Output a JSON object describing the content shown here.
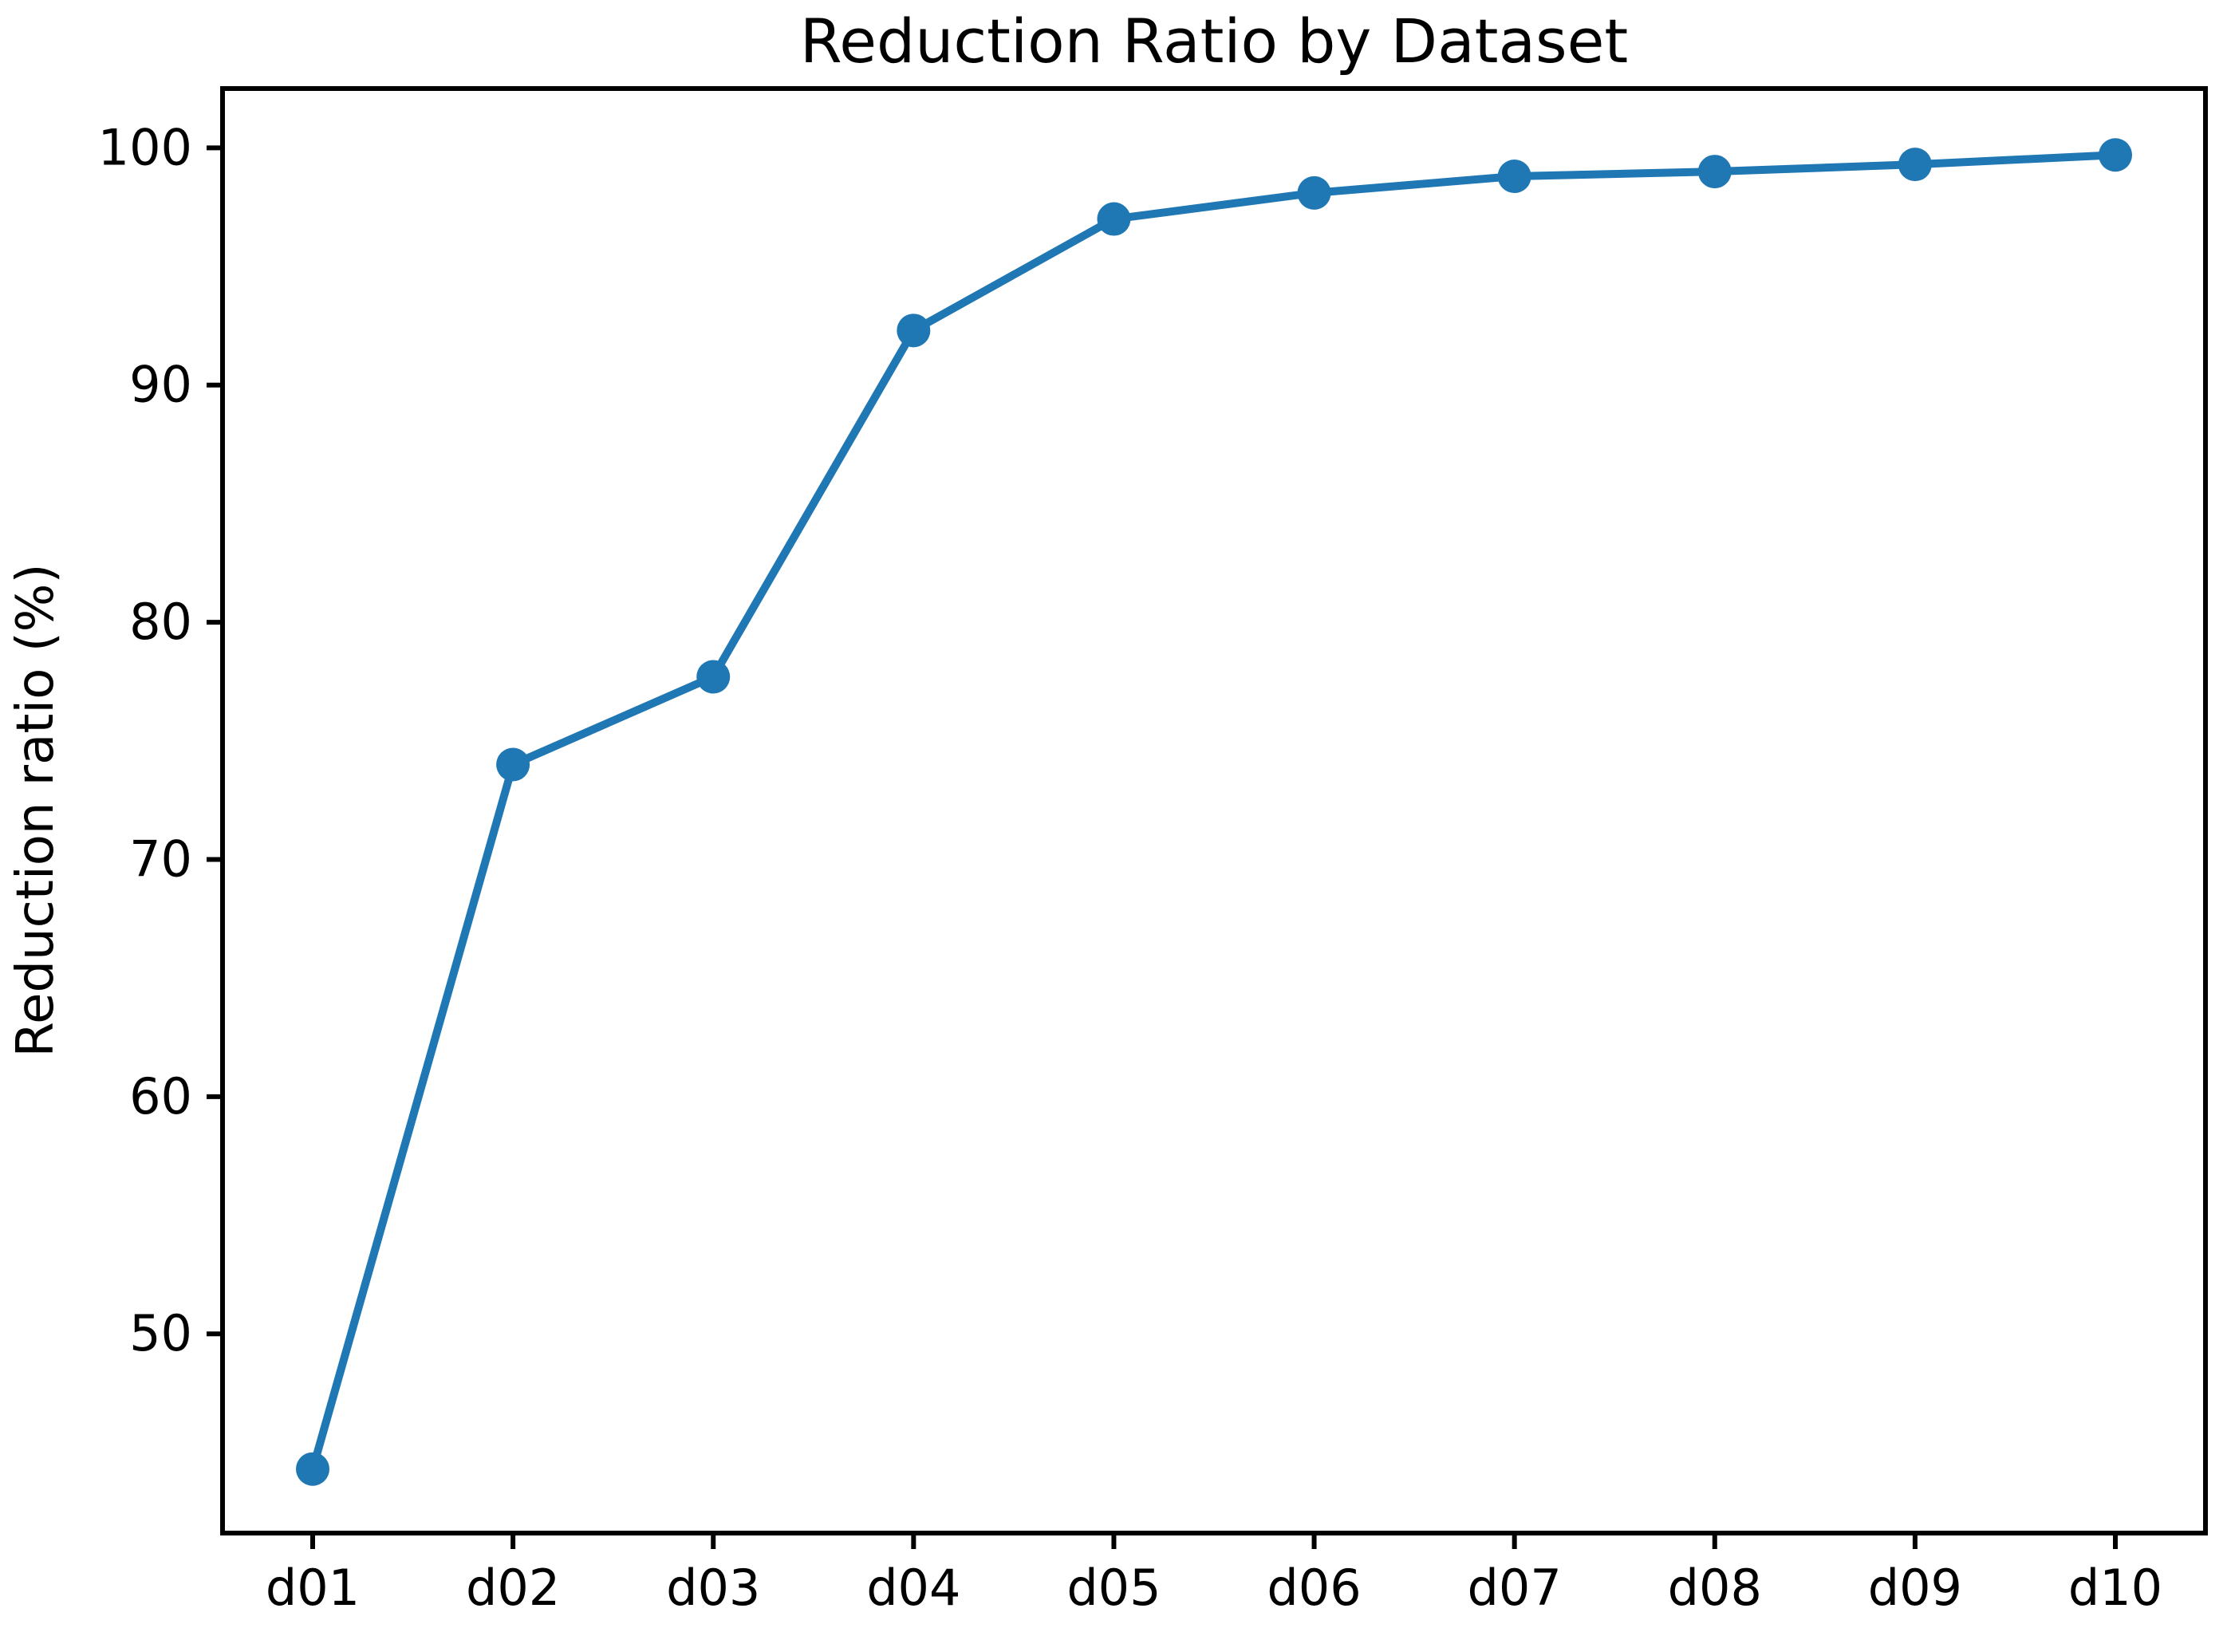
{
  "chart_data": {
    "type": "line",
    "title": "Reduction Ratio by Dataset",
    "xlabel": "",
    "ylabel": "Reduction ratio (%)",
    "categories": [
      "d01",
      "d02",
      "d03",
      "d04",
      "d05",
      "d06",
      "d07",
      "d08",
      "d09",
      "d10"
    ],
    "values": [
      44.3,
      74.0,
      77.7,
      92.3,
      97.0,
      98.1,
      98.8,
      99.0,
      99.3,
      99.7
    ],
    "series_name": "Reduction ratio",
    "ylim": [
      41.6,
      102.5
    ],
    "yticks": [
      50,
      60,
      70,
      80,
      90,
      100
    ],
    "grid": false,
    "legend_position": "none",
    "line_color": "#1f77b4",
    "marker_style": "circle",
    "axis_color": "#000000",
    "background_color": "#ffffff"
  }
}
